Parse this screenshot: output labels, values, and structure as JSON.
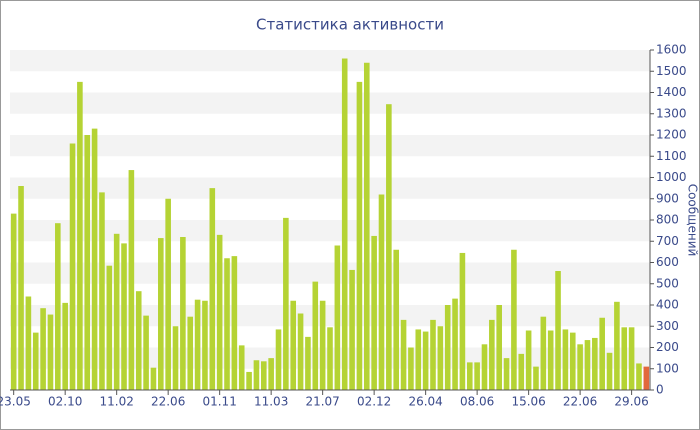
{
  "chart_data": {
    "type": "bar",
    "title": "Статистика активности",
    "y_label": "Сообщений",
    "categories": [
      "23.05",
      null,
      null,
      null,
      null,
      null,
      null,
      "02.10",
      null,
      null,
      null,
      null,
      null,
      null,
      "11.02",
      null,
      null,
      null,
      null,
      null,
      null,
      "22.06",
      null,
      null,
      null,
      null,
      null,
      null,
      "01.11",
      null,
      null,
      null,
      null,
      null,
      null,
      "11.03",
      null,
      null,
      null,
      null,
      null,
      null,
      "21.07",
      null,
      null,
      null,
      null,
      null,
      null,
      "02.12",
      null,
      null,
      null,
      null,
      null,
      null,
      "26.04",
      null,
      null,
      null,
      null,
      null,
      null,
      "08.06",
      null,
      null,
      null,
      null,
      null,
      null,
      "15.06",
      null,
      null,
      null,
      null,
      null,
      null,
      "22.06",
      null,
      null,
      null,
      null,
      null,
      null,
      "29.06",
      null,
      null
    ],
    "values": [
      830,
      960,
      440,
      270,
      385,
      355,
      785,
      410,
      1160,
      1450,
      1200,
      1230,
      930,
      585,
      735,
      690,
      1035,
      465,
      350,
      105,
      715,
      900,
      300,
      720,
      345,
      425,
      420,
      950,
      730,
      620,
      630,
      210,
      85,
      140,
      135,
      150,
      285,
      810,
      420,
      360,
      250,
      510,
      420,
      295,
      680,
      1560,
      565,
      1450,
      1540,
      725,
      920,
      1345,
      660,
      330,
      200,
      285,
      275,
      330,
      300,
      400,
      430,
      645,
      130,
      130,
      215,
      330,
      400,
      150,
      660,
      170,
      280,
      110,
      345,
      280,
      560,
      285,
      270,
      215,
      235,
      245,
      340,
      175,
      415,
      295,
      295,
      125,
      110
    ],
    "color": "#b5d334",
    "last_bar_color": "#e2683c",
    "ylim": [
      0,
      1600
    ],
    "yticks": [
      0,
      100,
      200,
      300,
      400,
      500,
      600,
      700,
      800,
      900,
      1000,
      1100,
      1200,
      1300,
      1400,
      1500,
      1600
    ],
    "grid": true
  }
}
